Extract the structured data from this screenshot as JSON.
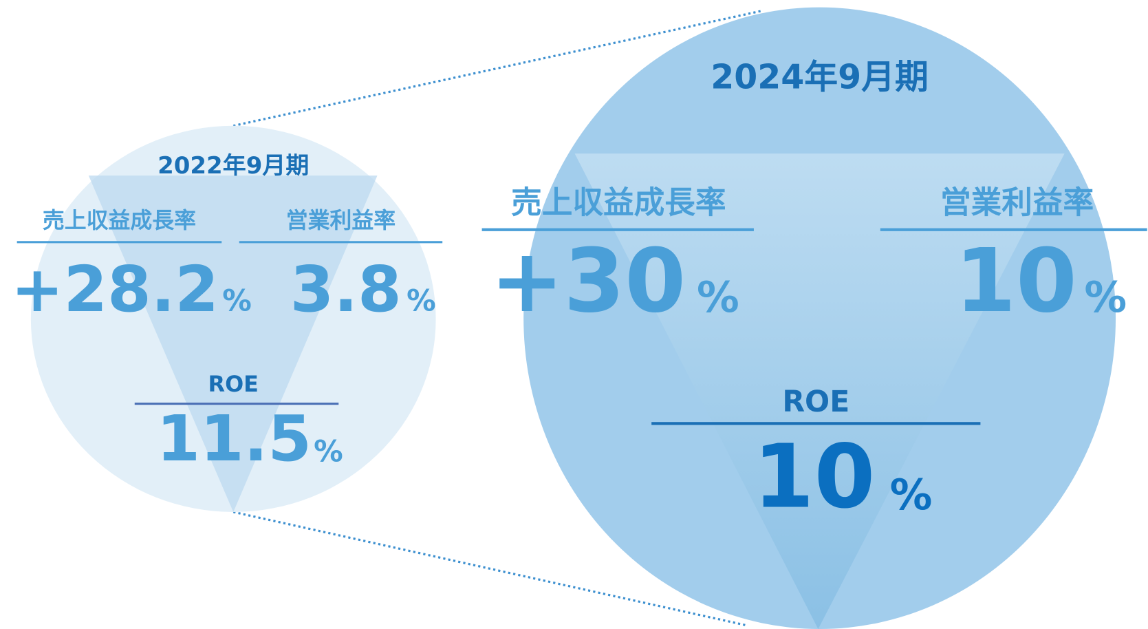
{
  "before": {
    "title": "2022年9月期",
    "metrics": [
      {
        "label": "売上収益成長率",
        "value": "+28.2",
        "unit": "%"
      },
      {
        "label": "営業利益率",
        "value": "3.8",
        "unit": "%"
      },
      {
        "label": "ROE",
        "value": "11.5",
        "unit": "%"
      }
    ]
  },
  "after": {
    "title": "2024年9月期",
    "metrics": [
      {
        "label": "売上収益成長率",
        "value": "+30",
        "unit": "%"
      },
      {
        "label": "営業利益率",
        "value": "10",
        "unit": "%"
      },
      {
        "label": "ROE",
        "value": "10",
        "unit": "%"
      }
    ]
  }
}
